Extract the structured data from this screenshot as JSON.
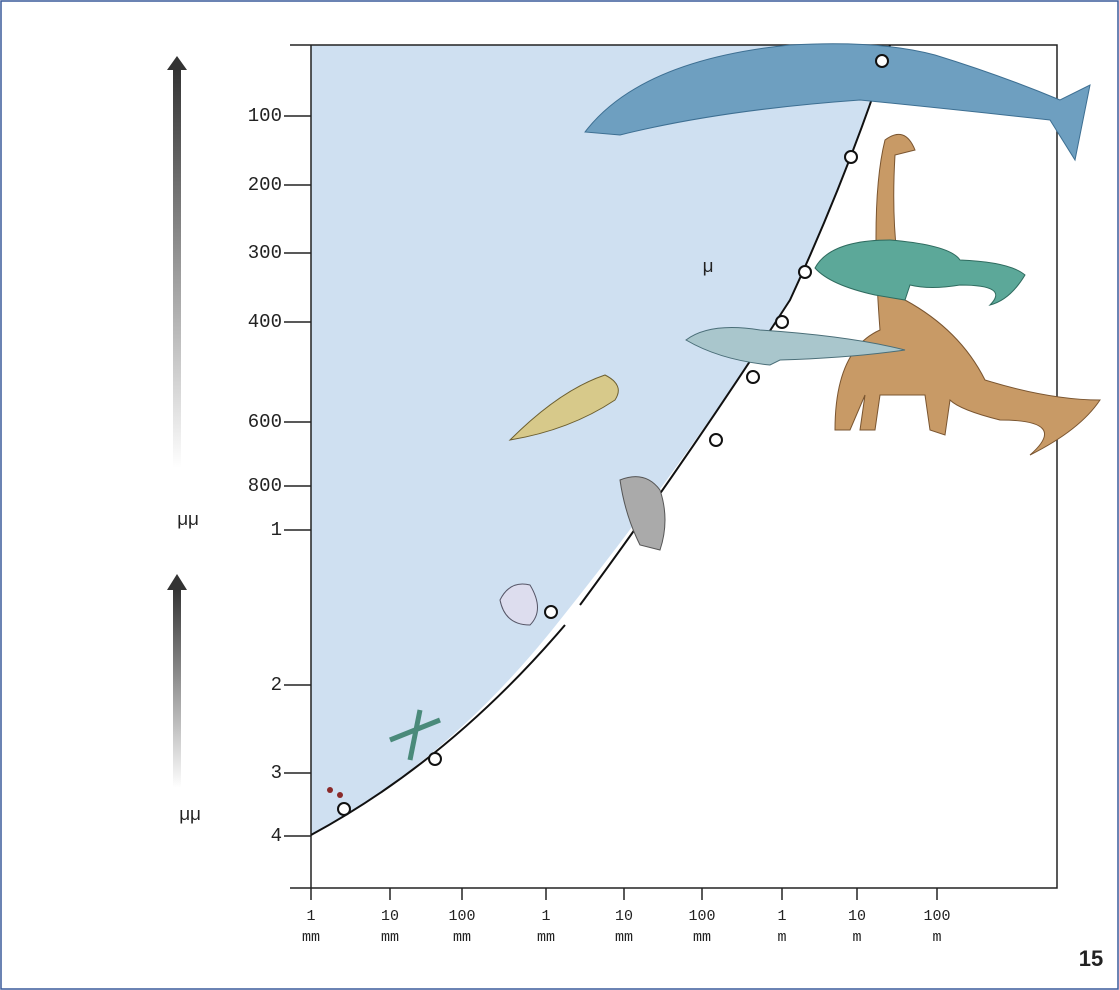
{
  "y_axis": {
    "labels": [
      "100",
      "200",
      "300",
      "400",
      "600",
      "800",
      "1",
      "2",
      "3",
      "4"
    ],
    "upper_unit": "µµ",
    "lower_unit": "µµ"
  },
  "x_axis": {
    "labels": [
      [
        "1",
        "mm"
      ],
      [
        "10",
        "mm"
      ],
      [
        "100",
        "mm"
      ],
      [
        "1",
        "mm"
      ],
      [
        "10",
        "mm"
      ],
      [
        "100",
        "mm"
      ],
      [
        "1",
        "m"
      ],
      [
        "10",
        "m"
      ],
      [
        "100",
        "m"
      ]
    ]
  },
  "annotation": "µ",
  "page_number": "15"
}
